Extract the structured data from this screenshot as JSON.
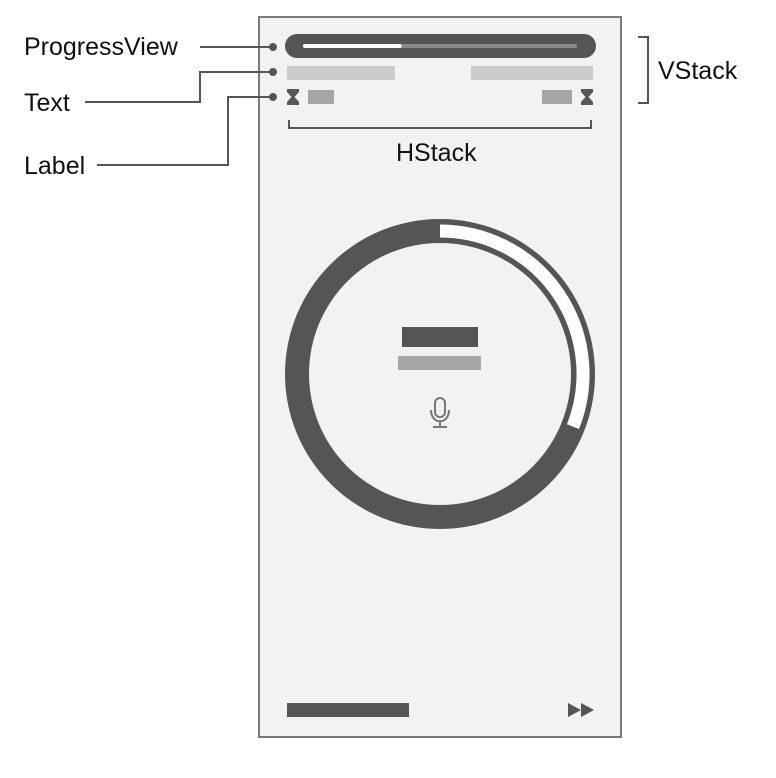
{
  "callouts": {
    "progress_view": "ProgressView",
    "text": "Text",
    "label": "Label",
    "vstack": "VStack",
    "hstack": "HStack"
  },
  "progress": {
    "value": 0.36
  },
  "ring": {
    "remaining_fraction": 0.31
  },
  "icons": {
    "left_timer": "hourglass-icon",
    "right_timer": "hourglass-icon",
    "center": "microphone-icon",
    "skip": "fast-forward-icon"
  },
  "colors": {
    "dark": "#555555",
    "mid": "#a6a6a6",
    "light": "#cccccc",
    "screen": "#f2f2f2",
    "track_fill": "#ffffff"
  }
}
